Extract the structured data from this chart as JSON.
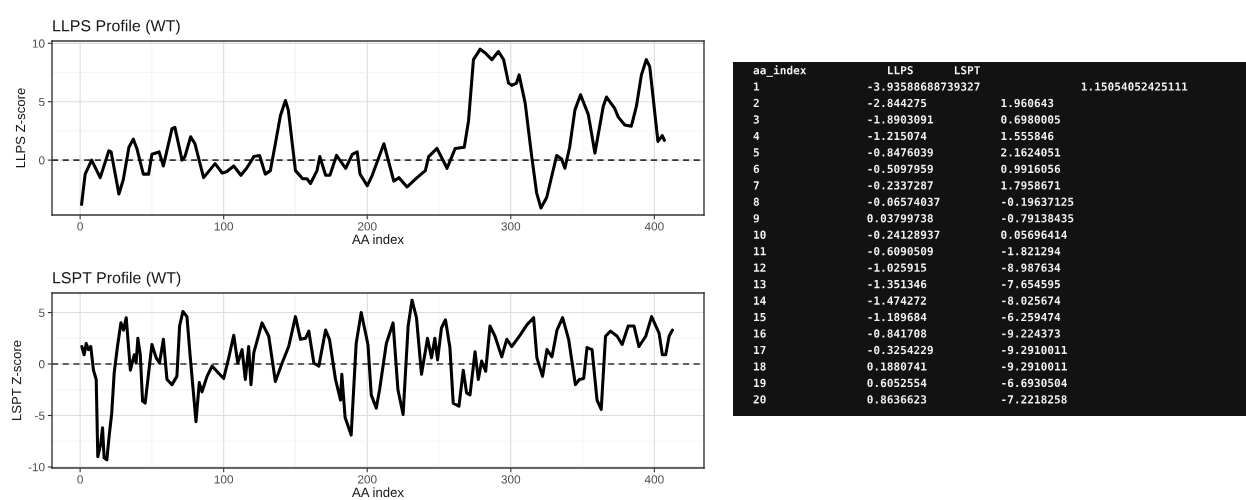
{
  "chart_data": [
    {
      "type": "line",
      "title": "LLPS Profile (WT)",
      "xlabel": "AA index",
      "ylabel": "LLPS Z-score",
      "xlim": [
        -19.6,
        434.6
      ],
      "xticks": [
        0,
        100,
        200,
        300,
        400
      ],
      "ylim": [
        -4.7,
        10.2
      ],
      "yticks": [
        0,
        5,
        10
      ],
      "grid": true,
      "ref_lines": [
        {
          "axis": "y",
          "value": 0,
          "label": null,
          "color": "#333333",
          "line_style": "dashed"
        }
      ],
      "series": [
        {
          "color": "#000000",
          "x": [
            1,
            3.5,
            8,
            14,
            20,
            21.6,
            27,
            30,
            34,
            37,
            39.5,
            44,
            47.7,
            50,
            55,
            58,
            64,
            66,
            71,
            73,
            77,
            80,
            86,
            94,
            99,
            102,
            107,
            112,
            116,
            121,
            125,
            129,
            132.5,
            136,
            139.5,
            143,
            145,
            150,
            155,
            158,
            160.5,
            165,
            167,
            171,
            174,
            178.6,
            185,
            189.6,
            193,
            195,
            200,
            203.5,
            211.6,
            218.5,
            222,
            227.8,
            234.7,
            240.5,
            242.8,
            248.6,
            255.6,
            261.3,
            267.6,
            270.6,
            274,
            278.7,
            282,
            286.8,
            291.4,
            295,
            298.4,
            300.7,
            304,
            305.8,
            310,
            314.6,
            318,
            321,
            325,
            332,
            335.4,
            337.7,
            341,
            344.7,
            348.6,
            354,
            358.6,
            364.4,
            366.7,
            372.5,
            374.8,
            379.4,
            384,
            387.5,
            391,
            394.4,
            396.8,
            402.5,
            405.5,
            407
          ],
          "values": [
            -3.8,
            -1.2,
            0,
            -1.5,
            0.8,
            0.7,
            -2.9,
            -1.7,
            1.1,
            1.8,
            1.0,
            -1.2,
            -1.2,
            0.5,
            0.7,
            -0.5,
            2.7,
            2.8,
            0,
            0.3,
            2.0,
            1.4,
            -1.5,
            -0.3,
            -1.1,
            -1.0,
            -0.5,
            -1.3,
            -0.7,
            0.3,
            0.4,
            -1.2,
            -0.9,
            1.4,
            3.8,
            5.1,
            4.3,
            -0.9,
            -1.6,
            -1.6,
            -2.0,
            -0.9,
            0.3,
            -1.3,
            -1.3,
            0.4,
            -0.7,
            0.5,
            0.7,
            -1.2,
            -2.2,
            -1.3,
            1.4,
            -1.8,
            -1.5,
            -2.3,
            -1.5,
            -0.9,
            0.3,
            1.0,
            -0.7,
            1.0,
            1.1,
            3.4,
            8.6,
            9.5,
            9.2,
            8.6,
            9.3,
            8.6,
            6.6,
            6.4,
            6.6,
            7.3,
            4.9,
            0.3,
            -2.8,
            -4.1,
            -3.2,
            0.4,
            0.1,
            -0.7,
            1.1,
            4.3,
            5.6,
            3.9,
            0.6,
            4.6,
            5.4,
            4.4,
            3.7,
            3.0,
            2.9,
            4.6,
            7.3,
            8.6,
            8.0,
            1.6,
            2.1,
            1.7
          ]
        }
      ]
    },
    {
      "type": "line",
      "title": "LSPT Profile (WT)",
      "xlabel": "AA index",
      "ylabel": "LSPT Z-score",
      "xlim": [
        -19.6,
        434.6
      ],
      "xticks": [
        0,
        100,
        200,
        300,
        400
      ],
      "ylim": [
        -10.1,
        6.9
      ],
      "yticks": [
        -10,
        -5,
        0,
        5
      ],
      "grid": true,
      "ref_lines": [
        {
          "axis": "y",
          "value": 0,
          "label": null,
          "color": "#333333",
          "line_style": "dashed"
        }
      ],
      "series": [
        {
          "color": "#000000",
          "x": [
            1.2,
            2.8,
            4.2,
            5.8,
            7.4,
            9.3,
            11.2,
            12.3,
            14.4,
            15.6,
            16.7,
            18.6,
            20.2,
            22,
            23.7,
            26,
            28.4,
            30.2,
            32.1,
            35,
            37.7,
            39,
            40.2,
            41.9,
            43.5,
            45.3,
            50,
            53,
            55.3,
            58,
            60.5,
            64,
            67.4,
            69.3,
            71.6,
            74.4,
            76.7,
            80.7,
            83,
            84.9,
            88.4,
            91.9,
            96.5,
            100,
            103.5,
            107,
            109.8,
            112.8,
            115.1,
            117.4,
            119,
            121,
            126.7,
            131.4,
            136,
            140.7,
            145.3,
            150,
            153.5,
            157,
            159.3,
            162.8,
            166.3,
            171,
            173.7,
            177.9,
            181.4,
            182.3,
            184.6,
            188.8,
            192.3,
            195.8,
            200.5,
            202.8,
            206.3,
            208.6,
            213.3,
            218,
            221.4,
            225,
            228.5,
            231.2,
            234.3,
            237.8,
            242,
            244.8,
            247.1,
            249,
            251.7,
            254.5,
            257.6,
            259.9,
            263.9,
            266.9,
            269.2,
            271.6,
            275.1,
            277.4,
            279.7,
            282.5,
            285.5,
            289,
            293.7,
            297.2,
            300.7,
            306.5,
            311.2,
            315.9,
            318.2,
            322.1,
            325.2,
            328.7,
            332.2,
            336.1,
            340.3,
            345,
            347.8,
            350.8,
            353.1,
            356.6,
            360.1,
            363,
            366,
            369.5,
            374.1,
            377.6,
            381.8,
            385.8,
            389.3,
            394,
            398.1,
            403.3,
            405.6,
            407.9,
            410.3,
            412.6
          ],
          "values": [
            1.7,
            0.9,
            2.0,
            1.4,
            1.7,
            -0.6,
            -1.5,
            -9.0,
            -7.7,
            -6.2,
            -9.1,
            -9.3,
            -7.0,
            -4.8,
            -0.9,
            1.7,
            4.0,
            3.3,
            4.5,
            -0.6,
            0.9,
            0.1,
            2.5,
            0.9,
            -3.6,
            -3.8,
            1.9,
            0.6,
            0.1,
            2.4,
            -1.5,
            -2.0,
            -1.2,
            3.7,
            5.1,
            4.6,
            0.7,
            -5.6,
            -1.8,
            -2.7,
            -1.2,
            -0.2,
            -0.9,
            -1.4,
            0.6,
            2.8,
            0.1,
            1.4,
            -1.5,
            1.7,
            -2.0,
            1.1,
            4.0,
            2.7,
            -1.7,
            0.1,
            1.7,
            4.6,
            2.4,
            2.5,
            3.2,
            0.1,
            -0.2,
            3.3,
            2.4,
            -1.5,
            -3.5,
            -1.0,
            -5.2,
            -6.9,
            2.0,
            5.0,
            1.9,
            -3.0,
            -4.3,
            -2.5,
            2.0,
            4.0,
            -2.5,
            -4.9,
            3.7,
            6.2,
            4.5,
            -1.0,
            2.5,
            0.6,
            2.5,
            0.4,
            3.5,
            4.3,
            1.6,
            -3.8,
            -4.1,
            -0.6,
            -2.8,
            -3.0,
            1.2,
            -1.5,
            0.3,
            -0.7,
            3.7,
            2.7,
            0.7,
            2.4,
            1.7,
            2.8,
            3.8,
            4.5,
            0.6,
            -1.2,
            1.4,
            0.7,
            3.3,
            4.5,
            2.4,
            -2.0,
            -1.5,
            -1.4,
            1.6,
            1.4,
            -3.5,
            -4.4,
            2.7,
            3.2,
            2.7,
            1.9,
            3.7,
            3.7,
            1.7,
            2.7,
            4.6,
            3.0,
            0.9,
            0.9,
            2.7,
            3.3
          ]
        }
      ]
    },
    {
      "type": "other",
      "annotations": [
        "aa_index            LLPS      LSPT",
        "1                -3.93588688739327               1.15054052425111",
        "2                -2.844275           1.960643",
        "3                -1.8903091          0.6980005",
        "4                -1.215074           1.555846",
        "5                -0.8476039          2.1624051",
        "6                -0.5097959          0.9916056",
        "7                -0.2337287          1.7958671",
        "8                -0.06574037         -0.19637125",
        "9                0.03799738          -0.79138435",
        "10               -0.24128937         0.05696414",
        "11               -0.6090509          -1.821294",
        "12               -1.025915           -8.987634",
        "13               -1.351346           -7.654595",
        "14               -1.474272           -8.025674",
        "15               -1.189684           -6.259474",
        "16               -0.841708           -9.224373",
        "17               -0.3254229          -9.2910011",
        "18               0.1880741           -9.2910011",
        "19               0.6052554           -6.6930504",
        "20               0.8636623           -7.2218258"
      ]
    }
  ]
}
